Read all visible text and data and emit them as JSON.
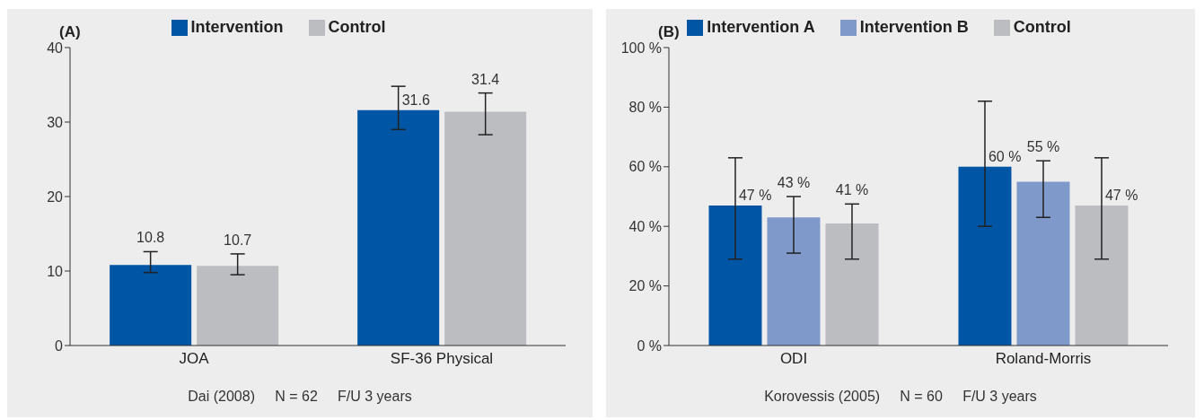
{
  "chart_data": [
    {
      "type": "bar",
      "title": "(A)",
      "categories": [
        "JOA",
        "SF-36 Physical"
      ],
      "series": [
        {
          "name": "Intervention",
          "color": "#0055a4",
          "values": [
            10.8,
            31.6
          ],
          "errors": [
            [
              9.8,
              12.6
            ],
            [
              29,
              34.8
            ]
          ]
        },
        {
          "name": "Control",
          "color": "#bcbdc1",
          "values": [
            10.7,
            31.4
          ],
          "errors": [
            [
              9.5,
              12.3
            ],
            [
              28.3,
              33.9
            ]
          ]
        }
      ],
      "ylim": [
        0,
        40
      ],
      "yticks": [
        0,
        10,
        20,
        30,
        40
      ],
      "data_labels": true,
      "legend": "top",
      "grid": false,
      "annotations": [
        "Dai (2008)     N = 62     F/U 3 years"
      ]
    },
    {
      "type": "bar",
      "title": "(B)",
      "categories": [
        "ODI",
        "Roland-Morris"
      ],
      "series": [
        {
          "name": "Intervention A",
          "color": "#0055a4",
          "values": [
            47,
            60
          ],
          "errors": [
            [
              29,
              63
            ],
            [
              40,
              82
            ]
          ],
          "value_labels": [
            "47 %",
            "60 %"
          ]
        },
        {
          "name": "Intervention B",
          "color": "#7f99cb",
          "values": [
            43,
            55
          ],
          "errors": [
            [
              31,
              50
            ],
            [
              43,
              62
            ]
          ],
          "value_labels": [
            "43 %",
            "55 %"
          ]
        },
        {
          "name": "Control",
          "color": "#bcbdc1",
          "values": [
            41,
            47
          ],
          "errors": [
            [
              29,
              47.5
            ],
            [
              29,
              63
            ]
          ],
          "value_labels": [
            "41 %",
            "47 %"
          ]
        }
      ],
      "ylim": [
        0,
        100
      ],
      "yticks": [
        {
          "value": 0,
          "label": "0 %"
        },
        {
          "value": 20,
          "label": "20 %"
        },
        {
          "value": 40,
          "label": "40 %"
        },
        {
          "value": 60,
          "label": "60 %"
        },
        {
          "value": 80,
          "label": "80 %"
        },
        {
          "value": 100,
          "label": "100 %"
        }
      ],
      "legend": "top",
      "grid": false,
      "annotations": [
        "Korovessis (2005)     N = 60     F/U 3 years"
      ]
    }
  ]
}
